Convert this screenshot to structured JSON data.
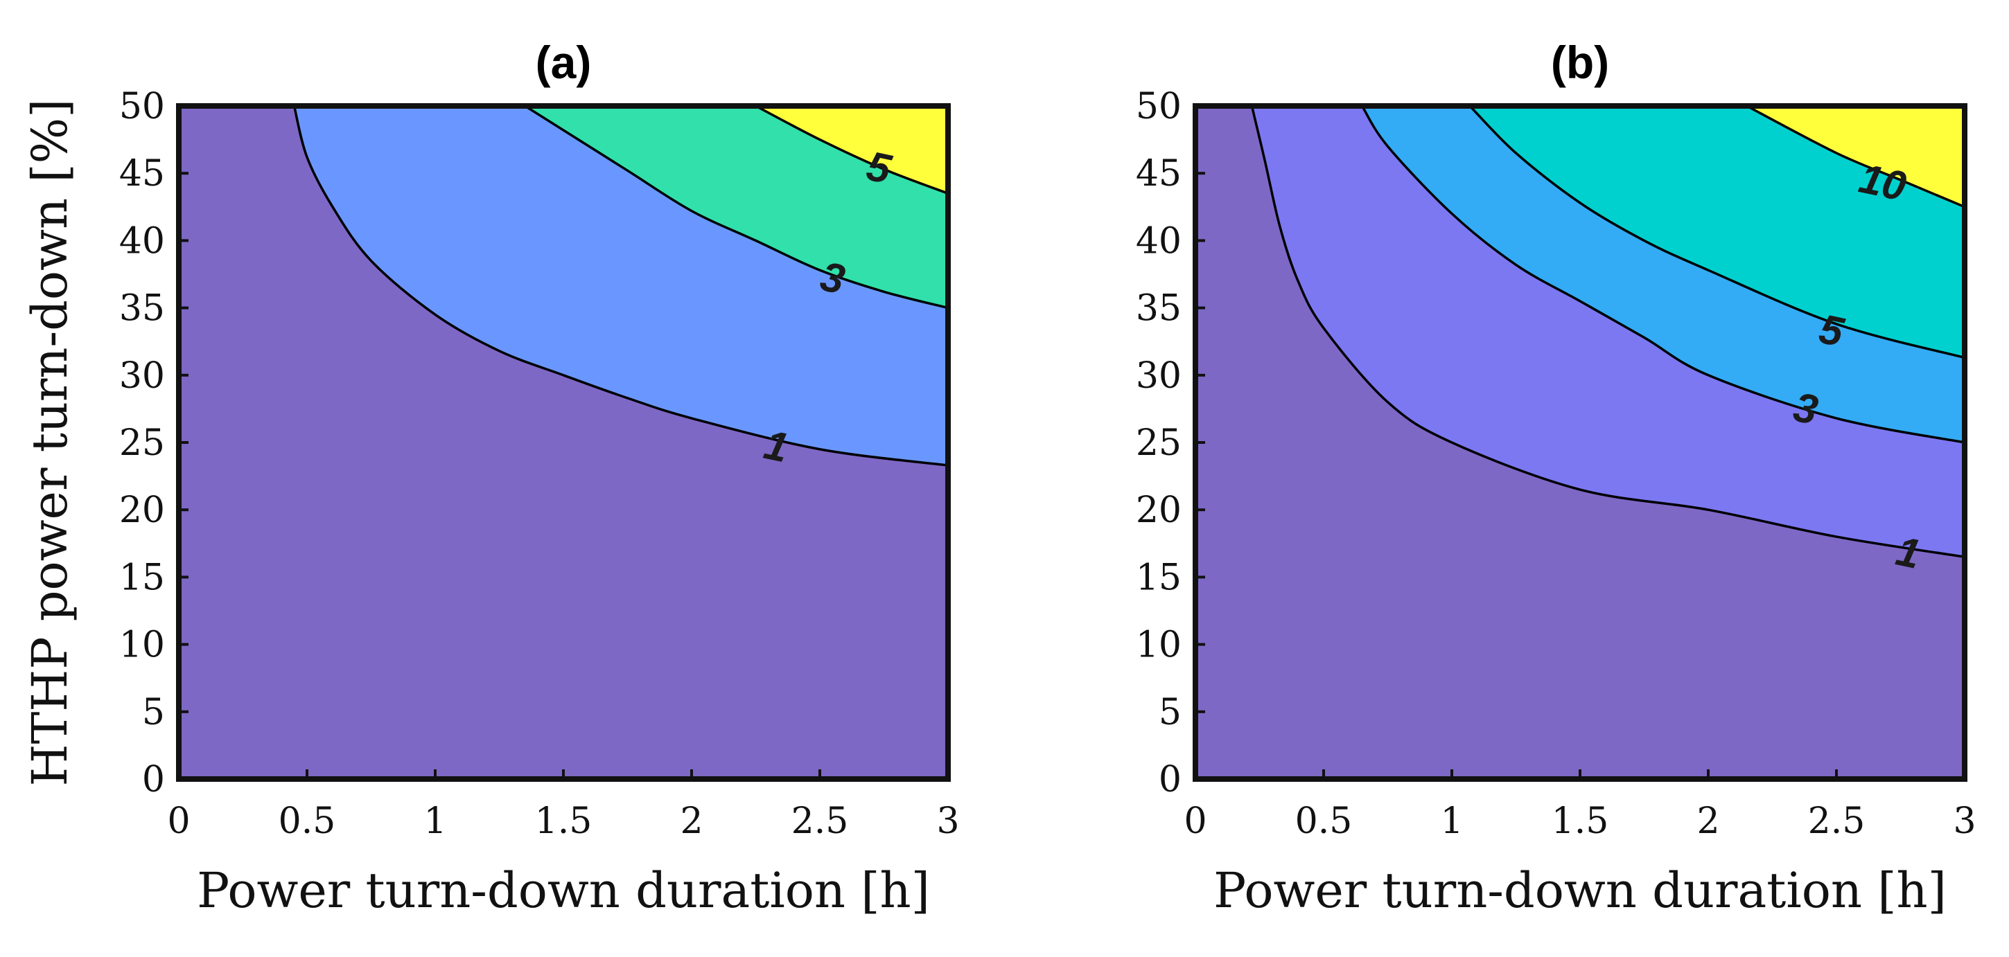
{
  "chart_data": [
    {
      "type": "contour",
      "title": "(a)",
      "xlabel": "Power turn-down duration [h]",
      "ylabel": "HTHP power turn-down [%]",
      "xlim": [
        0,
        3
      ],
      "ylim": [
        0,
        50
      ],
      "xticks": [
        "0",
        "0.5",
        "1",
        "1.5",
        "2",
        "2.5",
        "3"
      ],
      "yticks": [
        "0",
        "5",
        "10",
        "15",
        "20",
        "25",
        "30",
        "35",
        "40",
        "45",
        "50"
      ],
      "show_ylabel": true,
      "levels": [
        {
          "value": 1,
          "label": "1",
          "color": "#6a97ff",
          "curve": [
            [
              0.45,
              50
            ],
            [
              0.5,
              46.2
            ],
            [
              0.6,
              42.5
            ],
            [
              0.75,
              38.5
            ],
            [
              1.0,
              34.5
            ],
            [
              1.25,
              31.8
            ],
            [
              1.5,
              30.0
            ],
            [
              1.75,
              28.3
            ],
            [
              2.0,
              26.8
            ],
            [
              2.5,
              24.5
            ],
            [
              3.0,
              23.3
            ]
          ],
          "label_at": [
            2.33,
            24.7
          ]
        },
        {
          "value": 3,
          "label": "3",
          "color": "#31e0ab",
          "curve": [
            [
              1.35,
              50
            ],
            [
              1.5,
              48.2
            ],
            [
              1.75,
              45.2
            ],
            [
              2.0,
              42.2
            ],
            [
              2.25,
              40.0
            ],
            [
              2.5,
              37.8
            ],
            [
              2.75,
              36.2
            ],
            [
              3.0,
              35.0
            ]
          ],
          "label_at": [
            2.55,
            37.2
          ]
        },
        {
          "value": 5,
          "label": "5",
          "color": "#ffff3b",
          "curve": [
            [
              2.25,
              50
            ],
            [
              2.5,
              47.5
            ],
            [
              2.75,
              45.3
            ],
            [
              3.0,
              43.5
            ]
          ],
          "label_at": [
            2.73,
            45.4
          ]
        }
      ],
      "base_color": "#7e68c5"
    },
    {
      "type": "contour",
      "title": "(b)",
      "xlabel": "Power turn-down duration [h]",
      "ylabel": "",
      "xlim": [
        0,
        3
      ],
      "ylim": [
        0,
        50
      ],
      "xticks": [
        "0",
        "0.5",
        "1",
        "1.5",
        "2",
        "2.5",
        "3"
      ],
      "yticks": [
        "0",
        "5",
        "10",
        "15",
        "20",
        "25",
        "30",
        "35",
        "40",
        "45",
        "50"
      ],
      "show_ylabel": false,
      "levels": [
        {
          "value": 1,
          "label": "1",
          "color": "#7c78f2",
          "curve": [
            [
              0.22,
              50
            ],
            [
              0.27,
              46.0
            ],
            [
              0.33,
              41.0
            ],
            [
              0.4,
              37.0
            ],
            [
              0.5,
              33.5
            ],
            [
              0.75,
              28.0
            ],
            [
              1.0,
              25.0
            ],
            [
              1.5,
              21.5
            ],
            [
              2.0,
              20.0
            ],
            [
              2.5,
              18.0
            ],
            [
              3.0,
              16.5
            ]
          ],
          "label_at": [
            2.78,
            16.8
          ]
        },
        {
          "value": 3,
          "label": "3",
          "color": "#34abf5",
          "curve": [
            [
              0.65,
              50
            ],
            [
              0.75,
              47.0
            ],
            [
              1.0,
              42.0
            ],
            [
              1.25,
              38.2
            ],
            [
              1.5,
              35.5
            ],
            [
              1.75,
              32.8
            ],
            [
              2.0,
              30.0
            ],
            [
              2.5,
              26.8
            ],
            [
              3.0,
              25.0
            ]
          ],
          "label_at": [
            2.38,
            27.5
          ]
        },
        {
          "value": 5,
          "label": "5",
          "color": "#00d1cf",
          "curve": [
            [
              1.07,
              50
            ],
            [
              1.25,
              46.5
            ],
            [
              1.5,
              42.8
            ],
            [
              1.75,
              40.0
            ],
            [
              2.0,
              37.8
            ],
            [
              2.5,
              33.8
            ],
            [
              3.0,
              31.3
            ]
          ],
          "label_at": [
            2.48,
            33.3
          ]
        },
        {
          "value": 10,
          "label": "10",
          "color": "#ffff3b",
          "curve": [
            [
              2.15,
              50
            ],
            [
              2.5,
              46.5
            ],
            [
              2.75,
              44.5
            ],
            [
              3.0,
              42.5
            ]
          ],
          "label_at": [
            2.68,
            44.3
          ]
        }
      ],
      "base_color": "#7e68c5"
    }
  ]
}
